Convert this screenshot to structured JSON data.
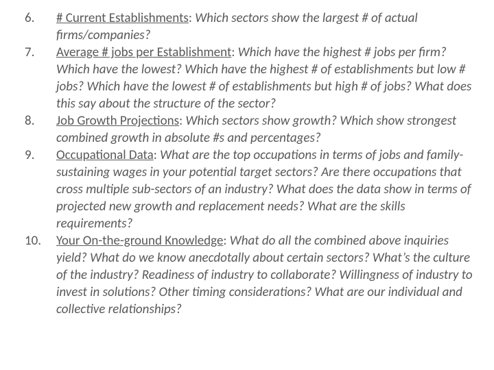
{
  "items": [
    {
      "num": "6.",
      "heading": "# Current Establishments",
      "rest": "Which sectors show the largest # of actual firms/companies?"
    },
    {
      "num": "7.",
      "heading": "Average # jobs per Establishment",
      "rest": "Which have the highest # jobs per firm? Which have the lowest? Which have the highest # of establishments but low # jobs? Which have the lowest # of establishments but high # of jobs? What does this say about the structure of the sector?"
    },
    {
      "num": "8.",
      "heading": "Job Growth Projections",
      "rest": "Which sectors show growth? Which show strongest combined growth in absolute #s and percentages?"
    },
    {
      "num": "9.",
      "heading": "Occupational Data",
      "rest": "What are the top occupations in terms of jobs and family-sustaining wages in your potential target sectors? Are there occupations that cross multiple sub-sectors of an industry? What does the data show in terms of projected new growth and replacement needs? What are the skills requirements?"
    },
    {
      "num": "10.",
      "heading": "Your On-the-ground Knowledge",
      "rest": "What do all the combined above inquiries yield? What do we know anecdotally about certain sectors? What’s the culture of the industry? Readiness of industry to collaborate? Willingness of industry to invest in solutions? Other timing considerations? What are our individual and collective relationships?"
    }
  ]
}
